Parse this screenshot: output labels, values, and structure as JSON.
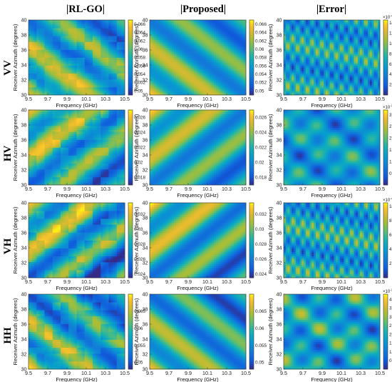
{
  "figure": {
    "column_headers": [
      "|RL-GO|",
      "|Proposed|",
      "|Error|"
    ],
    "row_headers": [
      "VV",
      "HV",
      "VH",
      "HH"
    ]
  },
  "chart_data": [
    {
      "id": "vv-rlgo",
      "type": "heatmap",
      "row": "VV",
      "column": "|RL-GO|",
      "xlabel": "Frequency (GHz)",
      "ylabel": "Receiver Azimuth (degrees)",
      "xlim": [
        9.5,
        10.5
      ],
      "ylim": [
        30,
        40
      ],
      "x_ticks": [
        "9.5",
        "9.7",
        "9.9",
        "10.1",
        "10.3",
        "10.5"
      ],
      "y_ticks": [
        "30",
        "32",
        "34",
        "36",
        "38",
        "40"
      ],
      "colorbar": {
        "ticks": [
          "0.066",
          "0.064",
          "0.062",
          "0.06",
          "0.058",
          "0.056",
          "0.054",
          "0.052",
          "0.05"
        ],
        "range": [
          0.049,
          0.067
        ],
        "exponent": ""
      },
      "field": {
        "kind": "diagonal-bands",
        "mean": 0.058,
        "amplitude": 0.007,
        "corner_high": "bottom-left",
        "noise": "blocky"
      }
    },
    {
      "id": "vv-proposed",
      "type": "heatmap",
      "row": "VV",
      "column": "|Proposed|",
      "xlabel": "Frequency (GHz)",
      "ylabel": "Receiver Azimuth (degrees)",
      "xlim": [
        9.5,
        10.5
      ],
      "ylim": [
        30,
        40
      ],
      "x_ticks": [
        "9.5",
        "9.7",
        "9.9",
        "10.1",
        "10.3",
        "10.5"
      ],
      "y_ticks": [
        "30",
        "32",
        "34",
        "36",
        "38",
        "40"
      ],
      "colorbar": {
        "ticks": [
          "0.066",
          "0.064",
          "0.062",
          "0.06",
          "0.058",
          "0.056",
          "0.054",
          "0.052",
          "0.05"
        ],
        "range": [
          0.049,
          0.067
        ],
        "exponent": ""
      },
      "field": {
        "kind": "diagonal-bands",
        "mean": 0.058,
        "amplitude": 0.007,
        "corner_high": "bottom-left",
        "noise": "none"
      }
    },
    {
      "id": "vv-error",
      "type": "heatmap",
      "row": "VV",
      "column": "|Error|",
      "xlabel": "Frequency (GHz)",
      "ylabel": "Receiver Azimuth (degrees)",
      "xlim": [
        9.5,
        10.5
      ],
      "ylim": [
        30,
        40
      ],
      "x_ticks": [
        "9.5",
        "9.7",
        "9.9",
        "10.1",
        "10.3",
        "10.5"
      ],
      "y_ticks": [
        "30",
        "32",
        "34",
        "36",
        "38",
        "40"
      ],
      "colorbar": {
        "ticks": [
          "14",
          "12",
          "10",
          "8",
          "6",
          "4",
          "2"
        ],
        "range": [
          0,
          14.5
        ],
        "exponent": "-4"
      },
      "field": {
        "kind": "error-ripples",
        "mean": 6,
        "amplitude": 6
      }
    },
    {
      "id": "hv-rlgo",
      "type": "heatmap",
      "row": "HV",
      "column": "|RL-GO|",
      "xlabel": "Frequency (GHz)",
      "ylabel": "Receiver Azimuth (degrees)",
      "xlim": [
        9.5,
        10.5
      ],
      "ylim": [
        30,
        40
      ],
      "x_ticks": [
        "9.5",
        "9.7",
        "9.9",
        "10.1",
        "10.3",
        "10.5"
      ],
      "y_ticks": [
        "30",
        "32",
        "34",
        "36",
        "38",
        "40"
      ],
      "colorbar": {
        "ticks": [
          "0.026",
          "0.024",
          "0.022",
          "0.02",
          "0.018"
        ],
        "range": [
          0.017,
          0.027
        ],
        "exponent": ""
      },
      "field": {
        "kind": "diagonal-bands",
        "mean": 0.022,
        "amplitude": 0.004,
        "corner_high": "top-left",
        "noise": "blocky"
      }
    },
    {
      "id": "hv-proposed",
      "type": "heatmap",
      "row": "HV",
      "column": "|Proposed|",
      "xlabel": "Frequency (GHz)",
      "ylabel": "Receiver Azimuth (degrees)",
      "xlim": [
        9.5,
        10.5
      ],
      "ylim": [
        30,
        40
      ],
      "x_ticks": [
        "9.5",
        "9.7",
        "9.9",
        "10.1",
        "10.3",
        "10.5"
      ],
      "y_ticks": [
        "30",
        "32",
        "34",
        "36",
        "38",
        "40"
      ],
      "colorbar": {
        "ticks": [
          "0.026",
          "0.024",
          "0.022",
          "0.02",
          "0.018"
        ],
        "range": [
          0.017,
          0.027
        ],
        "exponent": ""
      },
      "field": {
        "kind": "diagonal-bands",
        "mean": 0.022,
        "amplitude": 0.004,
        "corner_high": "top-left",
        "noise": "none"
      }
    },
    {
      "id": "hv-error",
      "type": "heatmap",
      "row": "HV",
      "column": "|Error|",
      "xlabel": "Frequency (GHz)",
      "ylabel": "Receiver Azimuth (degrees)",
      "xlim": [
        9.5,
        10.5
      ],
      "ylim": [
        30,
        40
      ],
      "x_ticks": [
        "9.5",
        "9.7",
        "9.9",
        "10.1",
        "10.3",
        "10.5"
      ],
      "y_ticks": [
        "30",
        "32",
        "34",
        "36",
        "38",
        "40"
      ],
      "colorbar": {
        "ticks": [
          "3",
          "2.5",
          "2",
          "1.5",
          "1",
          "0.5"
        ],
        "range": [
          0,
          3.2
        ],
        "exponent": "-3"
      },
      "field": {
        "kind": "error-blobs",
        "mean": 1.2,
        "amplitude": 1.1
      }
    },
    {
      "id": "vh-rlgo",
      "type": "heatmap",
      "row": "VH",
      "column": "|RL-GO|",
      "xlabel": "Frequency (GHz)",
      "ylabel": "Receiver Azimuth (degrees)",
      "xlim": [
        9.5,
        10.5
      ],
      "ylim": [
        30,
        40
      ],
      "x_ticks": [
        "9.5",
        "9.7",
        "9.9",
        "10.1",
        "10.3",
        "10.5"
      ],
      "y_ticks": [
        "30",
        "32",
        "34",
        "36",
        "38",
        "40"
      ],
      "colorbar": {
        "ticks": [
          "0.032",
          "0.03",
          "0.028",
          "0.026",
          "0.024"
        ],
        "range": [
          0.0235,
          0.0335
        ],
        "exponent": ""
      },
      "field": {
        "kind": "diagonal-bands",
        "mean": 0.0285,
        "amplitude": 0.0045,
        "corner_high": "top-left",
        "noise": "blocky"
      }
    },
    {
      "id": "vh-proposed",
      "type": "heatmap",
      "row": "VH",
      "column": "|Proposed|",
      "xlabel": "Frequency (GHz)",
      "ylabel": "Receiver Azimuth (degrees)",
      "xlim": [
        9.5,
        10.5
      ],
      "ylim": [
        30,
        40
      ],
      "x_ticks": [
        "9.5",
        "9.7",
        "9.9",
        "10.1",
        "10.3",
        "10.5"
      ],
      "y_ticks": [
        "30",
        "32",
        "34",
        "36",
        "38",
        "40"
      ],
      "colorbar": {
        "ticks": [
          "0.032",
          "0.03",
          "0.028",
          "0.026",
          "0.024"
        ],
        "range": [
          0.0235,
          0.0335
        ],
        "exponent": ""
      },
      "field": {
        "kind": "diagonal-bands",
        "mean": 0.0285,
        "amplitude": 0.0045,
        "corner_high": "top-left",
        "noise": "none"
      }
    },
    {
      "id": "vh-error",
      "type": "heatmap",
      "row": "VH",
      "column": "|Error|",
      "xlabel": "Frequency (GHz)",
      "ylabel": "Receiver Azimuth (degrees)",
      "xlim": [
        9.5,
        10.5
      ],
      "ylim": [
        30,
        40
      ],
      "x_ticks": [
        "9.5",
        "9.7",
        "9.9",
        "10.1",
        "10.3",
        "10.5"
      ],
      "y_ticks": [
        "30",
        "32",
        "34",
        "36",
        "38",
        "40"
      ],
      "colorbar": {
        "ticks": [
          "10",
          "8",
          "6",
          "4",
          "2"
        ],
        "range": [
          0,
          10.5
        ],
        "exponent": "-4"
      },
      "field": {
        "kind": "error-ripples",
        "mean": 4.5,
        "amplitude": 4.5
      }
    },
    {
      "id": "hh-rlgo",
      "type": "heatmap",
      "row": "HH",
      "column": "|RL-GO|",
      "xlabel": "Frequency (GHz)",
      "ylabel": "Receiver Azimuth (degrees)",
      "xlim": [
        9.5,
        10.5
      ],
      "ylim": [
        30,
        40
      ],
      "x_ticks": [
        "9.5",
        "9.7",
        "9.9",
        "10.1",
        "10.3",
        "10.5"
      ],
      "y_ticks": [
        "30",
        "32",
        "34",
        "36",
        "38",
        "40"
      ],
      "colorbar": {
        "ticks": [
          "0.065",
          "0.06",
          "0.055",
          "0.05"
        ],
        "range": [
          0.048,
          0.07
        ],
        "exponent": ""
      },
      "field": {
        "kind": "diagonal-bands",
        "mean": 0.058,
        "amplitude": 0.009,
        "corner_high": "bottom-left",
        "noise": "blocky"
      }
    },
    {
      "id": "hh-proposed",
      "type": "heatmap",
      "row": "HH",
      "column": "|Proposed|",
      "xlabel": "Frequency (GHz)",
      "ylabel": "Receiver Azimuth (degrees)",
      "xlim": [
        9.5,
        10.5
      ],
      "ylim": [
        30,
        40
      ],
      "x_ticks": [
        "9.5",
        "9.7",
        "9.9",
        "10.1",
        "10.3",
        "10.5"
      ],
      "y_ticks": [
        "30",
        "32",
        "34",
        "36",
        "38",
        "40"
      ],
      "colorbar": {
        "ticks": [
          "0.065",
          "0.06",
          "0.055",
          "0.05"
        ],
        "range": [
          0.048,
          0.07
        ],
        "exponent": ""
      },
      "field": {
        "kind": "diagonal-bands",
        "mean": 0.058,
        "amplitude": 0.009,
        "corner_high": "bottom-left",
        "noise": "none"
      }
    },
    {
      "id": "hh-error",
      "type": "heatmap",
      "row": "HH",
      "column": "|Error|",
      "xlabel": "Frequency (GHz)",
      "ylabel": "Receiver Azimuth (degrees)",
      "xlim": [
        9.5,
        10.5
      ],
      "ylim": [
        30,
        40
      ],
      "x_ticks": [
        "9.5",
        "9.7",
        "9.9",
        "10.1",
        "10.3",
        "10.5"
      ],
      "y_ticks": [
        "30",
        "32",
        "34",
        "36",
        "38",
        "40"
      ],
      "colorbar": {
        "ticks": [
          "4",
          "3.5",
          "3",
          "2.5",
          "2",
          "1.5",
          "1",
          "0.5"
        ],
        "range": [
          0,
          4.3
        ],
        "exponent": "-3"
      },
      "field": {
        "kind": "error-blobs",
        "mean": 1.8,
        "amplitude": 1.7
      }
    }
  ]
}
